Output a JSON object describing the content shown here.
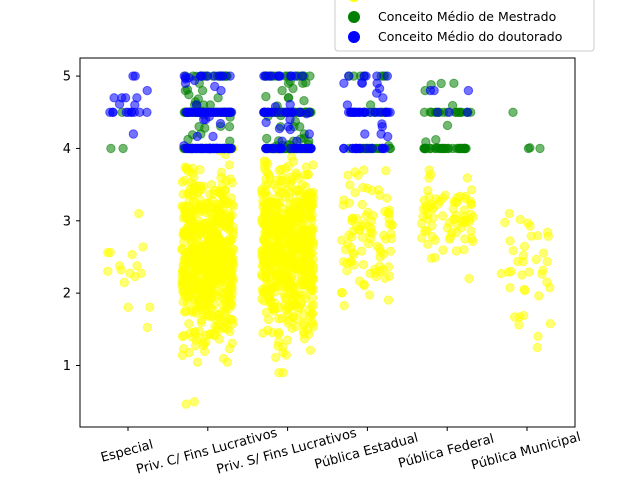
{
  "chart_data": {
    "type": "scatter",
    "style": "jittered strip plot",
    "categories": [
      "Especial",
      "Priv. C/ Fins Lucrativos",
      "Priv. S/ Fins Lucrativos",
      "Pública Estadual",
      "Pública Federal",
      "Pública Municipal"
    ],
    "yticks": [
      1,
      2,
      3,
      4,
      5
    ],
    "ylim": [
      0.15,
      5.25
    ],
    "xlabel": "",
    "ylabel": "",
    "grid": false,
    "legend_position": "top-right",
    "series": [
      {
        "name": "",
        "color": "#ffff00",
        "draw_order": 1,
        "counts": [
          16,
          600,
          600,
          90,
          75,
          38
        ],
        "distribution": [
          {
            "mean": 2.4,
            "sd": 0.55,
            "min": 1.3,
            "max": 3.1
          },
          {
            "mean": 2.5,
            "sd": 0.6,
            "min": 0.4,
            "max": 4.0
          },
          {
            "mean": 2.6,
            "sd": 0.6,
            "min": 0.9,
            "max": 4.0
          },
          {
            "mean": 2.7,
            "sd": 0.45,
            "min": 1.4,
            "max": 3.7
          },
          {
            "mean": 3.1,
            "sd": 0.3,
            "min": 2.2,
            "max": 3.7
          },
          {
            "mean": 2.3,
            "sd": 0.45,
            "min": 1.25,
            "max": 3.1
          }
        ]
      },
      {
        "name": "Conceito Médio de Mestrado",
        "color": "#008000",
        "draw_order": 2,
        "counts": [
          3,
          130,
          150,
          40,
          60,
          4
        ],
        "values_sample": [
          [
            4.0,
            4.5,
            4.0
          ],
          [
            4.0,
            4.5,
            5.0
          ],
          [
            4.0,
            4.5,
            5.0
          ],
          [
            4.0,
            4.5,
            5.0
          ],
          [
            4.0,
            4.5
          ],
          [
            4.0,
            4.5,
            4.4,
            4.5
          ]
        ]
      },
      {
        "name": "Conceito Médio do doutorado",
        "color": "#0000ff",
        "draw_order": 3,
        "counts": [
          20,
          110,
          70,
          60,
          6,
          0
        ],
        "values_sample": [
          [
            4.5,
            4.7,
            5.0,
            4.0
          ],
          [
            4.0,
            4.5,
            5.0
          ],
          [
            4.0,
            4.5,
            5.0
          ],
          [
            4.0,
            4.5,
            5.0
          ],
          [
            4.5,
            4.8
          ],
          []
        ]
      }
    ],
    "legend": {
      "entries": [
        {
          "label": "Conceito Médio de Mestrado",
          "color": "#008000"
        },
        {
          "label": "Conceito Médio do doutorado",
          "color": "#0000ff"
        }
      ]
    }
  }
}
